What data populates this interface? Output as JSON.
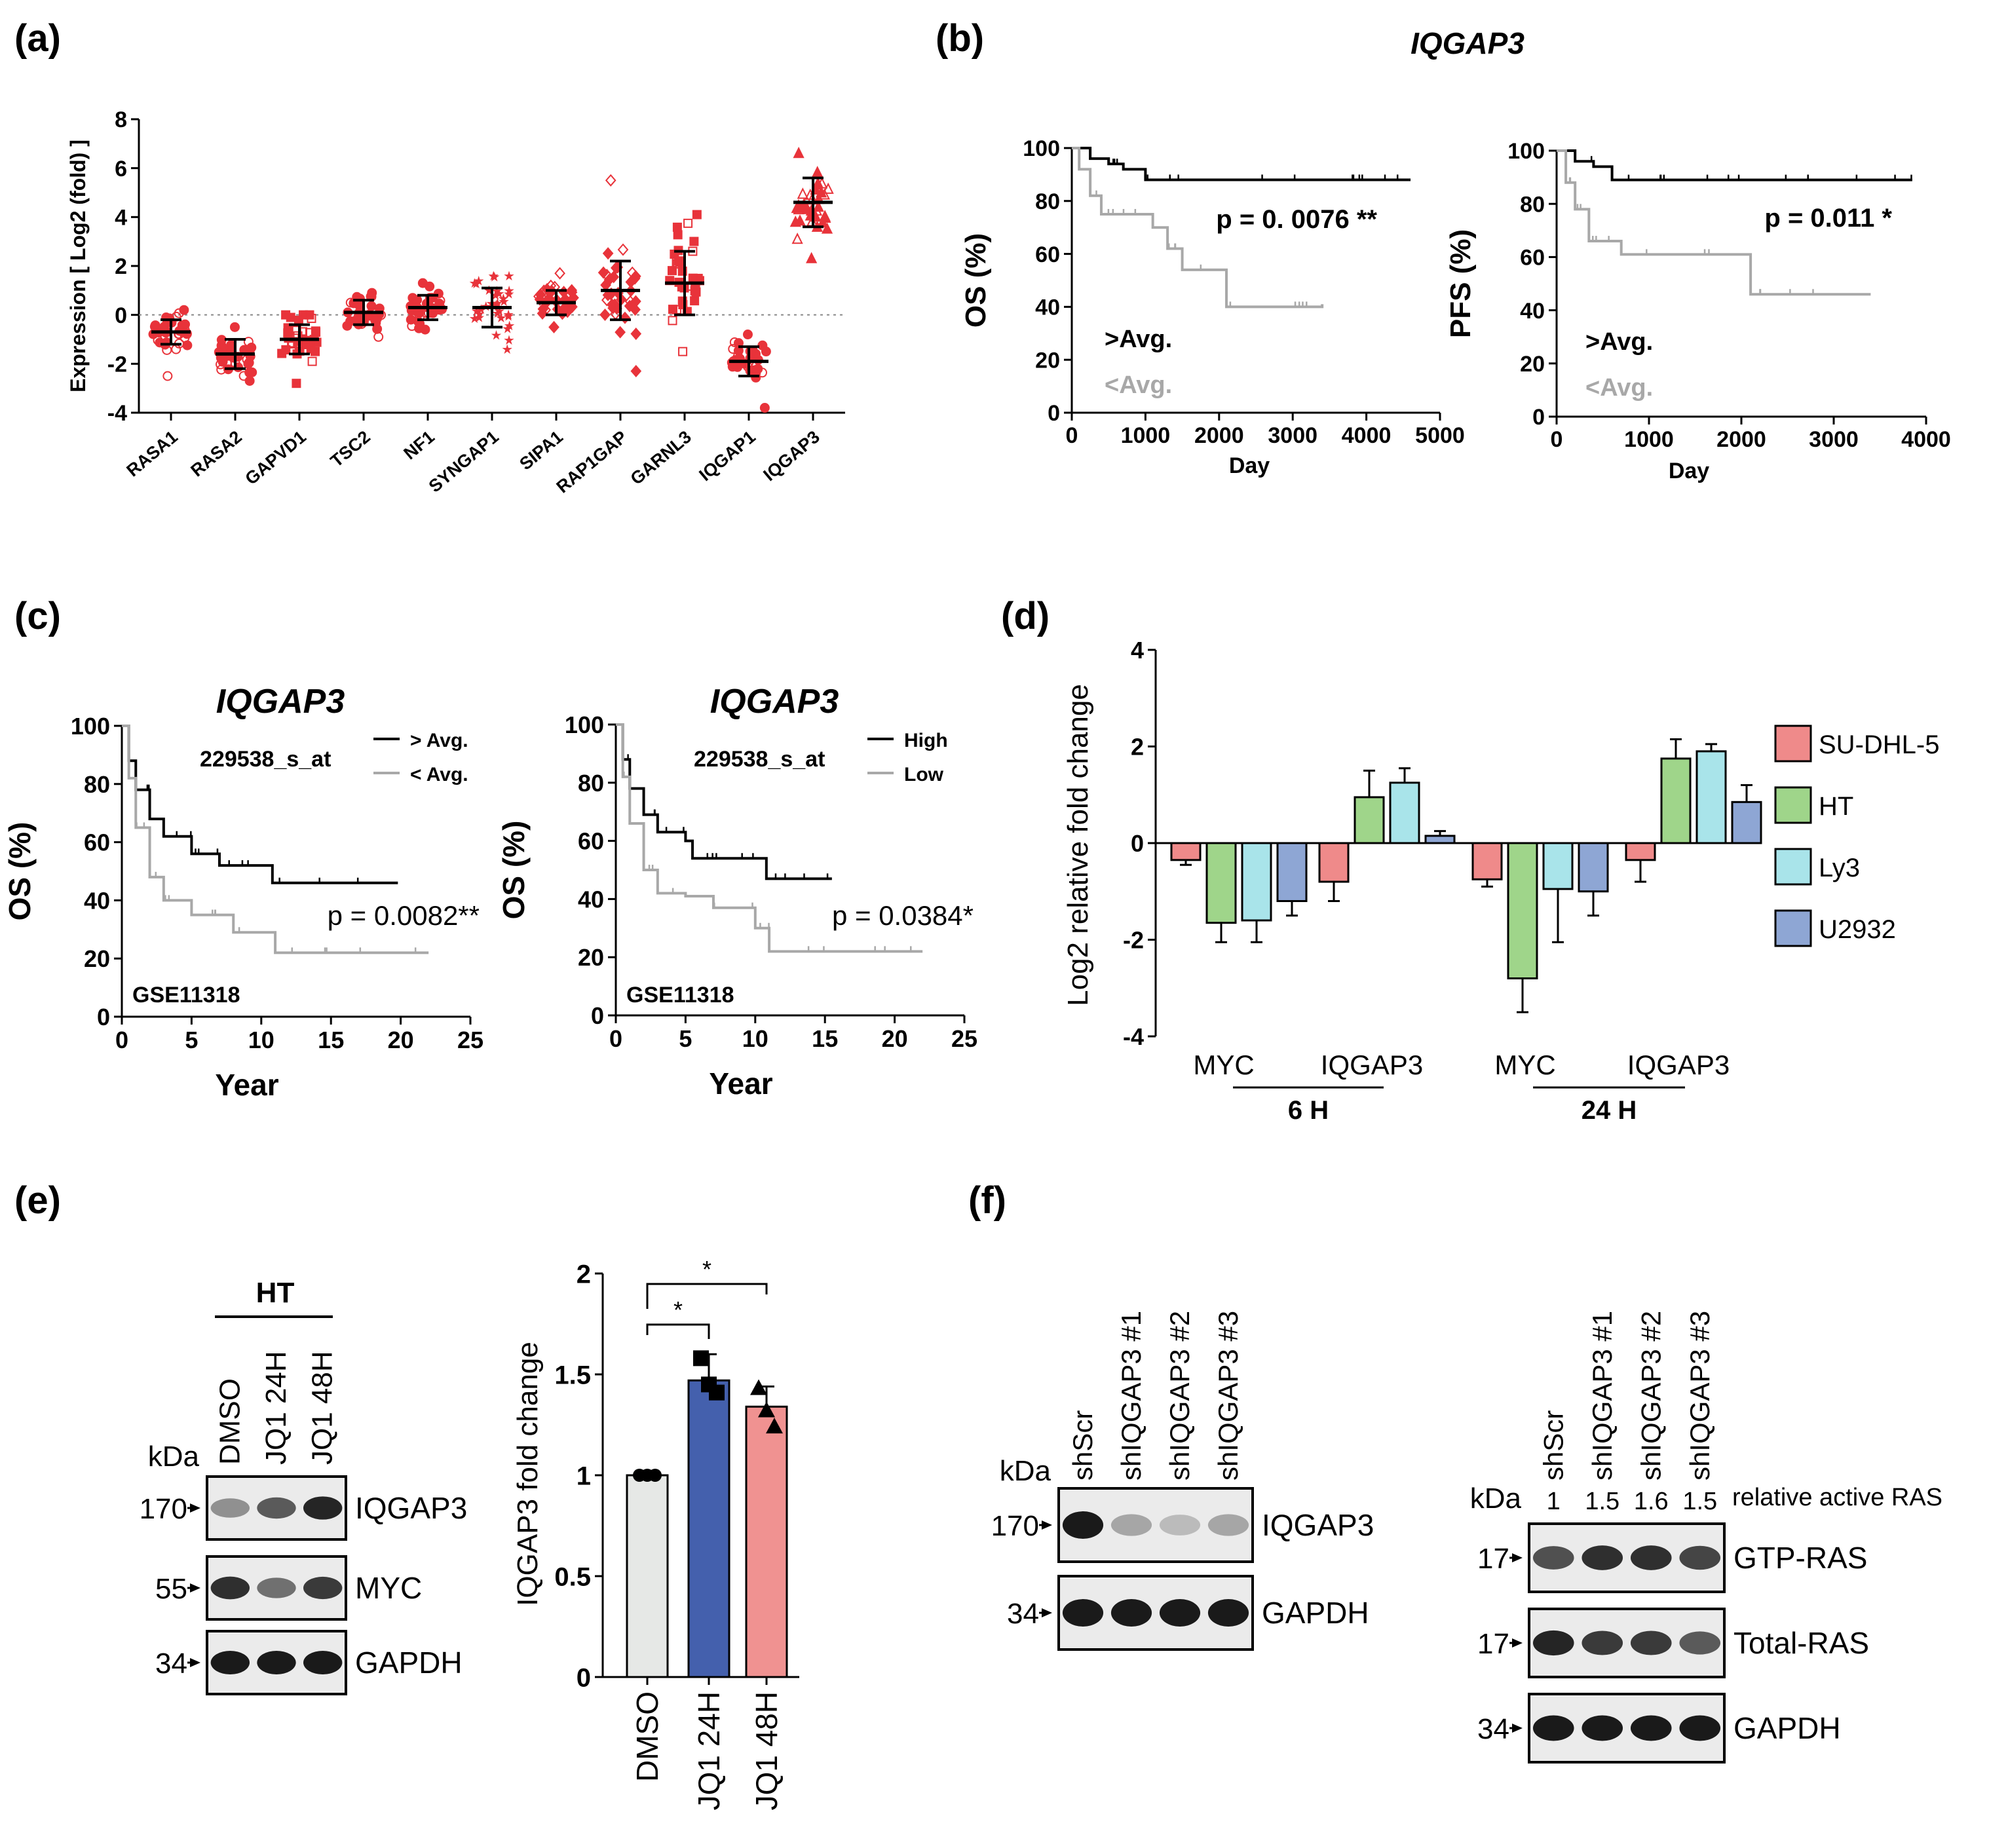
{
  "colors": {
    "dot_red": "#e8333a",
    "km_black": "#000000",
    "km_gray": "#a8a8a8",
    "su": "#ef8a8a",
    "ht": "#9fd58a",
    "ly3": "#a9e4ea",
    "u2932": "#8ea6d4",
    "dmso_bar": "#e6e8e6",
    "jq24_bar": "#4460ad",
    "jq48_bar": "#f09291"
  },
  "panel_labels": {
    "a": "(a)",
    "b": "(b)",
    "c": "(c)",
    "d": "(d)",
    "e": "(e)",
    "f": "(f)"
  },
  "chart_data": [
    {
      "panel": "a",
      "type": "scatter",
      "ylabel": "Expression [ Log2 (fold) ]",
      "ylim": [
        -4,
        8
      ],
      "yticks": [
        "-4",
        "-2",
        "0",
        "2",
        "4",
        "6",
        "8"
      ],
      "categories": [
        "RASA1",
        "RASA2",
        "GAPVD1",
        "TSC2",
        "NF1",
        "SYNGAP1",
        "SIPA1",
        "RAP1GAP",
        "GARNL3",
        "IQGAP1",
        "IQGAP3"
      ],
      "means": [
        -0.7,
        -1.6,
        -1.0,
        0.1,
        0.3,
        0.3,
        0.5,
        1.0,
        1.3,
        -1.9,
        4.6
      ],
      "sd": [
        0.5,
        0.6,
        0.6,
        0.5,
        0.5,
        0.8,
        0.5,
        1.2,
        1.3,
        0.6,
        1.0
      ],
      "ranges": [
        [
          -2.5,
          0.2
        ],
        [
          -2.7,
          -0.5
        ],
        [
          -2.8,
          0.0
        ],
        [
          -0.9,
          0.9
        ],
        [
          -0.6,
          1.3
        ],
        [
          -1.4,
          1.6
        ],
        [
          -0.5,
          1.7
        ],
        [
          -2.3,
          5.5
        ],
        [
          -1.5,
          4.1
        ],
        [
          -3.8,
          -0.8
        ],
        [
          2.3,
          6.6
        ]
      ],
      "markers": [
        "circle",
        "circle",
        "square",
        "circle",
        "circle",
        "star",
        "diamond",
        "diamond",
        "square",
        "circle",
        "triangle"
      ]
    },
    {
      "panel": "b1",
      "type": "line",
      "title": "IQGAP3",
      "ylabel": "OS (%)",
      "xlabel": "Day",
      "xlim": [
        0,
        5000
      ],
      "ylim": [
        0,
        100
      ],
      "xticks": [
        "0",
        "1000",
        "2000",
        "3000",
        "4000",
        "5000"
      ],
      "yticks": [
        "0",
        "20",
        "40",
        "60",
        "80",
        "100"
      ],
      "pvalue": "p = 0. 0076 **",
      "series": [
        {
          "name": ">Avg.",
          "x": [
            0,
            250,
            500,
            700,
            1000,
            4600
          ],
          "y": [
            100,
            96,
            94,
            92,
            88,
            88
          ]
        },
        {
          "name": "<Avg.",
          "x": [
            0,
            100,
            250,
            400,
            1100,
            1300,
            1500,
            2100,
            3300,
            3400
          ],
          "y": [
            100,
            92,
            82,
            75,
            70,
            62,
            54,
            40,
            40,
            41
          ]
        }
      ]
    },
    {
      "panel": "b2",
      "type": "line",
      "ylabel": "PFS (%)",
      "xlabel": "Day",
      "xlim": [
        0,
        4000
      ],
      "ylim": [
        0,
        100
      ],
      "xticks": [
        "0",
        "1000",
        "2000",
        "3000",
        "4000"
      ],
      "yticks": [
        "0",
        "20",
        "40",
        "60",
        "80",
        "100"
      ],
      "pvalue": "p = 0.011 *",
      "series": [
        {
          "name": ">Avg.",
          "x": [
            0,
            200,
            400,
            600,
            3850
          ],
          "y": [
            100,
            96,
            94,
            89,
            89
          ]
        },
        {
          "name": "<Avg.",
          "x": [
            0,
            100,
            200,
            350,
            700,
            2100,
            3400
          ],
          "y": [
            100,
            88,
            78,
            66,
            61,
            46,
            46
          ]
        }
      ]
    },
    {
      "panel": "c1",
      "type": "line",
      "title": "IQGAP3",
      "probe": "229538_s_at",
      "dataset": "GSE11318",
      "ylabel": "OS (%)",
      "xlabel": "Year",
      "xlim": [
        0,
        25
      ],
      "ylim": [
        0,
        100
      ],
      "xticks": [
        "0",
        "5",
        "10",
        "15",
        "20",
        "25"
      ],
      "yticks": [
        "0",
        "20",
        "40",
        "60",
        "80",
        "100"
      ],
      "pvalue": "p = 0.0082**",
      "series": [
        {
          "name": "> Avg.",
          "x": [
            0,
            0.5,
            1,
            2,
            3,
            5,
            7,
            10.8,
            19.8
          ],
          "y": [
            100,
            88,
            78,
            68,
            62,
            56,
            52,
            46,
            46
          ]
        },
        {
          "name": "< Avg.",
          "x": [
            0,
            0.5,
            1,
            2,
            3,
            5,
            8,
            11,
            22
          ],
          "y": [
            100,
            82,
            65,
            48,
            40,
            35,
            29,
            22,
            22
          ]
        }
      ]
    },
    {
      "panel": "c2",
      "type": "line",
      "title": "IQGAP3",
      "probe": "229538_s_at",
      "dataset": "GSE11318",
      "ylabel": "OS (%)",
      "xlabel": "Year",
      "xlim": [
        0,
        25
      ],
      "ylim": [
        0,
        100
      ],
      "xticks": [
        "0",
        "5",
        "10",
        "15",
        "20",
        "25"
      ],
      "yticks": [
        "0",
        "20",
        "40",
        "60",
        "80",
        "100"
      ],
      "pvalue": "p = 0.0384*",
      "series": [
        {
          "name": "High",
          "x": [
            0,
            0.5,
            1,
            2,
            3,
            5,
            5.5,
            7,
            10.8,
            15.5
          ],
          "y": [
            100,
            88,
            78,
            69,
            63,
            60,
            54,
            54,
            47,
            47
          ]
        },
        {
          "name": "Low",
          "x": [
            0,
            0.5,
            1,
            2,
            3,
            5,
            7,
            10,
            11,
            22
          ],
          "y": [
            100,
            82,
            66,
            50,
            42,
            41,
            37,
            30,
            22,
            22
          ]
        }
      ]
    },
    {
      "panel": "d",
      "type": "bar",
      "ylabel": "Log2 relative fold change",
      "ylim": [
        -4,
        4
      ],
      "yticks": [
        "-4",
        "-2",
        "0",
        "2",
        "4"
      ],
      "categories": [
        "MYC",
        "IQGAP3",
        "MYC",
        "IQGAP3"
      ],
      "groups": [
        "6 H",
        "24 H"
      ],
      "series": [
        {
          "name": "SU-DHL-5",
          "values": [
            -0.35,
            -0.8,
            -0.75,
            -0.35
          ],
          "err": [
            0.1,
            0.4,
            0.15,
            0.45
          ]
        },
        {
          "name": "HT",
          "values": [
            -1.65,
            0.95,
            -2.8,
            1.75
          ],
          "err": [
            0.4,
            0.55,
            0.7,
            0.4
          ]
        },
        {
          "name": "Ly3",
          "values": [
            -1.6,
            1.25,
            -0.95,
            1.9
          ],
          "err": [
            0.45,
            0.3,
            1.1,
            0.15
          ]
        },
        {
          "name": "U2932",
          "values": [
            -1.2,
            0.15,
            -1.0,
            0.85
          ],
          "err": [
            0.3,
            0.1,
            0.5,
            0.35
          ]
        }
      ]
    },
    {
      "panel": "e",
      "type": "bar",
      "ylabel": "IQGAP3 fold change",
      "ylim": [
        0,
        2
      ],
      "yticks": [
        "0",
        "0.5",
        "1",
        "1.5",
        "2"
      ],
      "categories": [
        "DMSO",
        "JQ1 24H",
        "JQ1 48H"
      ],
      "values": [
        1.0,
        1.47,
        1.34
      ],
      "err": [
        0.01,
        0.13,
        0.1
      ],
      "points": [
        [
          1.0,
          1.0,
          1.0
        ],
        [
          1.58,
          1.45,
          1.41
        ],
        [
          1.43,
          1.32,
          1.24
        ]
      ],
      "significance": [
        "*",
        "*"
      ]
    }
  ],
  "blot_e": {
    "group": "HT",
    "kda": "kDa",
    "lanes": [
      "DMSO",
      "JQ1 24H",
      "JQ1 48H"
    ],
    "rows": [
      {
        "marker": "170",
        "label": "IQGAP3",
        "intensity": [
          0.4,
          0.65,
          0.9
        ]
      },
      {
        "marker": "55",
        "label": "MYC",
        "intensity": [
          0.85,
          0.55,
          0.8
        ]
      },
      {
        "marker": "34",
        "label": "GAPDH",
        "intensity": [
          0.95,
          0.95,
          0.95
        ]
      }
    ]
  },
  "blot_f1": {
    "kda": "kDa",
    "lanes": [
      "shScr",
      "shIQGAP3 #1",
      "shIQGAP3 #2",
      "shIQGAP3 #3"
    ],
    "rows": [
      {
        "marker": "170",
        "label": "IQGAP3",
        "intensity": [
          0.95,
          0.3,
          0.2,
          0.3
        ]
      },
      {
        "marker": "34",
        "label": "GAPDH",
        "intensity": [
          0.95,
          0.95,
          0.95,
          0.95
        ]
      }
    ]
  },
  "blot_f2": {
    "kda": "kDa",
    "lanes": [
      "shScr",
      "shIQGAP3 #1",
      "shIQGAP3 #2",
      "shIQGAP3 #3"
    ],
    "quant_label": "relative active RAS",
    "quant": [
      "1",
      "1.5",
      "1.6",
      "1.5"
    ],
    "rows": [
      {
        "marker": "17",
        "label": "GTP-RAS",
        "intensity": [
          0.7,
          0.85,
          0.85,
          0.75
        ]
      },
      {
        "marker": "17",
        "label": "Total-RAS",
        "intensity": [
          0.9,
          0.8,
          0.8,
          0.65
        ]
      },
      {
        "marker": "34",
        "label": "GAPDH",
        "intensity": [
          0.95,
          0.95,
          0.95,
          0.95
        ]
      }
    ]
  }
}
